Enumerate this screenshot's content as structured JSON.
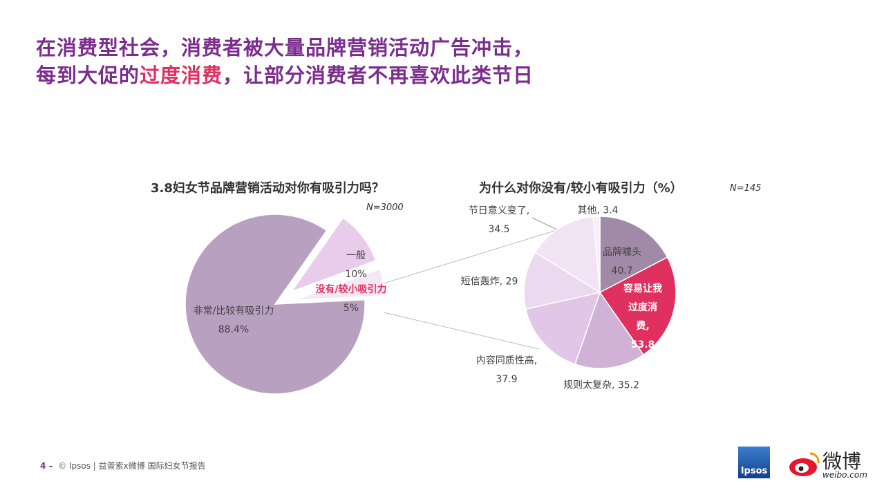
{
  "header": {
    "title_line1": "在消费型社会，消费者被大量品牌营销活动广告冲击，",
    "title_line2": [
      "每到大促的",
      "过度消费",
      "，让部分消费者不再喜欢此类节日"
    ]
  },
  "chart_data": [
    {
      "type": "pie",
      "title": "3.8妇女节品牌营销活动对你有吸引力吗？",
      "note": "N=3000",
      "categories": [
        "一般",
        "没有/较小吸引力",
        "非常/比较有吸引力"
      ],
      "values": [
        10,
        5,
        88.4
      ],
      "value_labels": [
        "10%",
        "5%",
        "88.4%"
      ],
      "colors": [
        "#e9cbec",
        "#f5e8f5",
        "#b8a0c0"
      ]
    },
    {
      "type": "pie",
      "title": "为什么对你没有/较小有吸引力（%）",
      "note": "N=145",
      "categories": [
        "品牌噱头",
        "容易让我过度消费,",
        "规则太复杂,",
        "内容同质性高,",
        "短信轰炸,",
        "节日意义变了,",
        "其他,"
      ],
      "values": [
        40.7,
        53.8,
        35.2,
        37.9,
        29,
        34.5,
        3.4
      ],
      "colors": [
        "#a18aa7",
        "#e0305f",
        "#d0b2d6",
        "#e2c6e7",
        "#ebd9ef",
        "#f1e3f3",
        "#f7eff8"
      ]
    }
  ],
  "footer": {
    "page": "4 –",
    "text": "© Ipsos | 益普索x微博  国际妇女节报告"
  },
  "logos": {
    "ipsos": "Ipsos",
    "weibo": "微博",
    "weibo_url": "weibo.com"
  }
}
